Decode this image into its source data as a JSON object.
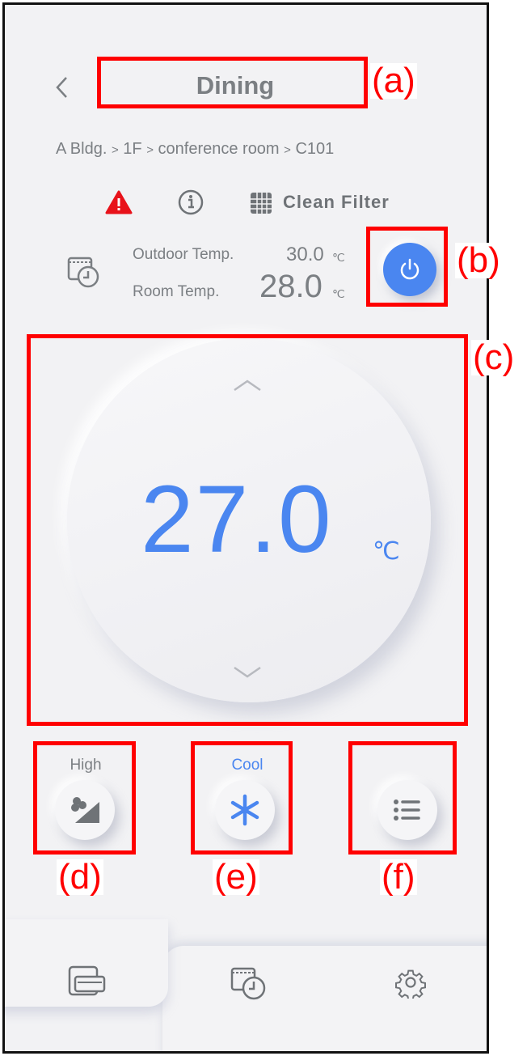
{
  "header": {
    "title": "Dining",
    "back_icon": "chevron-left-icon"
  },
  "breadcrumb": [
    "A Bldg.",
    "1F",
    "conference room",
    "C101"
  ],
  "breadcrumb_sep": ">",
  "status": {
    "warning_icon": "warning-triangle-icon",
    "info_icon": "info-icon",
    "filter_icon": "filter-grid-icon",
    "filter_label": "Clean Filter",
    "warning_color": "#e8121a"
  },
  "temps": {
    "outdoor_label": "Outdoor Temp.",
    "outdoor_value": "30.0",
    "room_label": "Room Temp.",
    "room_value": "28.0",
    "unit": "℃"
  },
  "power": {
    "icon": "power-icon",
    "color": "#4a86f0",
    "on": true
  },
  "setpoint": {
    "value": "27.0",
    "unit": "℃",
    "color": "#4a86f0",
    "up_icon": "chevron-up-icon",
    "down_icon": "chevron-down-icon"
  },
  "controls": {
    "fan_label": "High",
    "fan_icon": "fan-speed-icon",
    "mode_label": "Cool",
    "mode_icon": "snowflake-icon",
    "menu_icon": "list-icon"
  },
  "nav": {
    "items": [
      {
        "icon": "devices-icon",
        "active": true
      },
      {
        "icon": "schedule-icon"
      },
      {
        "icon": "settings-gear-icon"
      }
    ]
  },
  "annotations": {
    "a": "(a)",
    "b": "(b)",
    "c": "(c)",
    "d": "(d)",
    "e": "(e)",
    "f": "(f)"
  }
}
